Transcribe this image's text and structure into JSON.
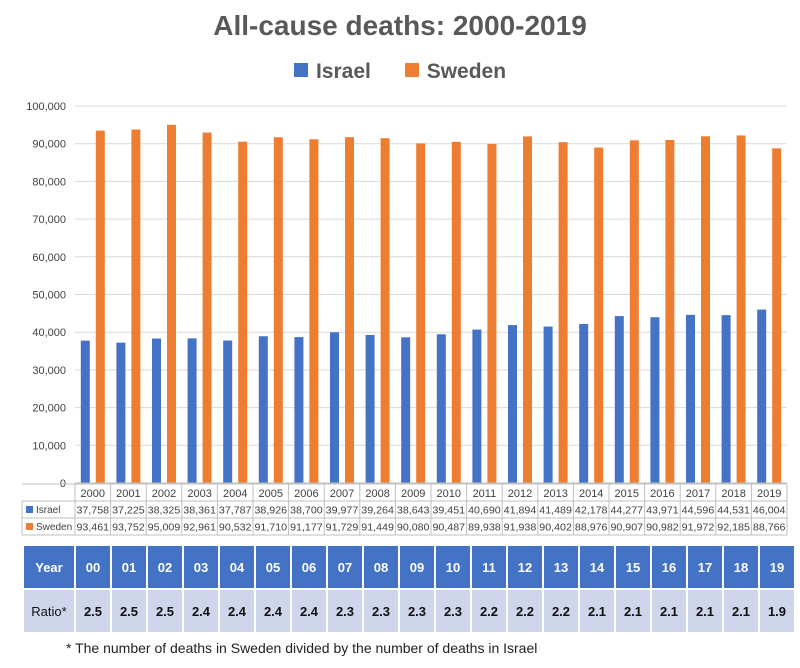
{
  "chart_data": {
    "type": "bar",
    "title": "All-cause deaths: 2000-2019",
    "categories": [
      "2000",
      "2001",
      "2002",
      "2003",
      "2004",
      "2005",
      "2006",
      "2007",
      "2008",
      "2009",
      "2010",
      "2011",
      "2012",
      "2013",
      "2014",
      "2015",
      "2016",
      "2017",
      "2018",
      "2019"
    ],
    "series": [
      {
        "name": "Israel",
        "color": "#4472c4",
        "values": [
          37758,
          37225,
          38325,
          38361,
          37787,
          38926,
          38700,
          39977,
          39264,
          38643,
          39451,
          40690,
          41894,
          41489,
          42178,
          44277,
          43971,
          44596,
          44531,
          46004
        ],
        "labels": [
          "37,758",
          "37,225",
          "38,325",
          "38,361",
          "37,787",
          "38,926",
          "38,700",
          "39,977",
          "39,264",
          "38,643",
          "39,451",
          "40,690",
          "41,894",
          "41,489",
          "42,178",
          "44,277",
          "43,971",
          "44,596",
          "44,531",
          "46,004"
        ]
      },
      {
        "name": "Sweden",
        "color": "#ed7d31",
        "values": [
          93461,
          93752,
          95009,
          92961,
          90532,
          91710,
          91177,
          91729,
          91449,
          90080,
          90487,
          89938,
          91938,
          90402,
          88976,
          90907,
          90982,
          91972,
          92185,
          88766
        ],
        "labels": [
          "93,461",
          "93,752",
          "95,009",
          "92,961",
          "90,532",
          "91,710",
          "91,177",
          "91,729",
          "91,449",
          "90,080",
          "90,487",
          "89,938",
          "91,938",
          "90,402",
          "88,976",
          "90,907",
          "90,982",
          "91,972",
          "92,185",
          "88,766"
        ]
      }
    ],
    "ylim": [
      0,
      100000
    ],
    "yticks": [
      "0",
      "10,000",
      "20,000",
      "30,000",
      "40,000",
      "50,000",
      "60,000",
      "70,000",
      "80,000",
      "90,000",
      "100,000"
    ],
    "grid": true,
    "legend_position": "top-center"
  },
  "ratio_table": {
    "year_header": "Year",
    "ratio_header": "Ratio*",
    "years": [
      "00",
      "01",
      "02",
      "03",
      "04",
      "05",
      "06",
      "07",
      "08",
      "09",
      "10",
      "11",
      "12",
      "13",
      "14",
      "15",
      "16",
      "17",
      "18",
      "19"
    ],
    "ratios": [
      "2.5",
      "2.5",
      "2.5",
      "2.4",
      "2.4",
      "2.4",
      "2.4",
      "2.3",
      "2.3",
      "2.3",
      "2.3",
      "2.2",
      "2.2",
      "2.2",
      "2.1",
      "2.1",
      "2.1",
      "2.1",
      "2.1",
      "1.9"
    ]
  },
  "footnote": "* The number of deaths in Sweden divided by the number of deaths in Israel"
}
